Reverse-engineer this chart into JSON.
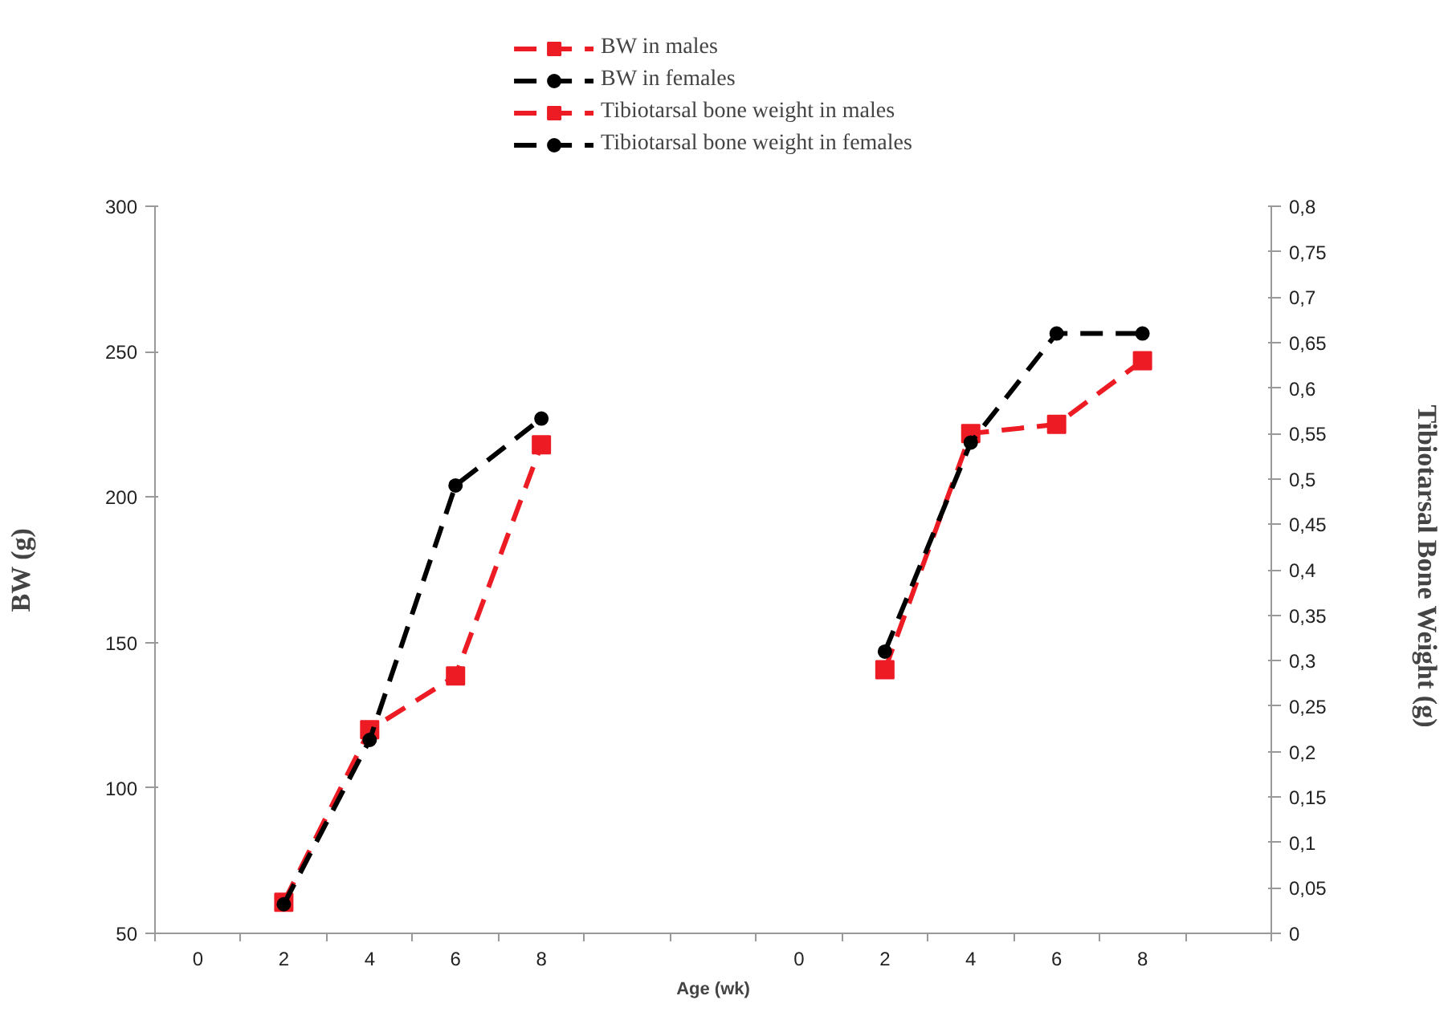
{
  "chart_data": {
    "type": "line",
    "xlabel": "Age (wk)",
    "ylabel": "BW (g)",
    "y2label": "Tibiotarsal Bone Weight  (g)",
    "categories": [
      "0",
      "2",
      "4",
      "6",
      "8",
      null,
      null,
      "0",
      "2",
      "4",
      "6",
      "8",
      null
    ],
    "series": [
      {
        "name": "BW in males",
        "color": "#ed1c24",
        "marker": "square",
        "values": [
          null,
          60.7,
          120,
          138.5,
          218,
          null,
          null,
          null,
          null,
          null,
          null,
          null,
          null
        ]
      },
      {
        "name": "BW in females",
        "color": "#000000",
        "marker": "circle",
        "values": [
          null,
          60,
          116.5,
          204,
          227,
          null,
          null,
          null,
          null,
          null,
          null,
          null,
          null
        ]
      },
      {
        "name": "Tibiotarsal bone weight in males",
        "color": "#ed1c24",
        "marker": "square",
        "axis": "y2",
        "values": [
          null,
          null,
          null,
          null,
          null,
          null,
          null,
          null,
          0.29,
          0.55,
          0.56,
          0.63,
          null
        ]
      },
      {
        "name": "Tibiotarsal bone weight in females",
        "color": "#000000",
        "marker": "circle",
        "axis": "y2",
        "values": [
          null,
          null,
          null,
          null,
          null,
          null,
          null,
          null,
          0.31,
          0.54,
          0.66,
          0.66,
          null
        ]
      }
    ],
    "ylim": [
      50,
      300
    ],
    "yticks": [
      50,
      100,
      150,
      200,
      250,
      300
    ],
    "y2lim": [
      0,
      0.8
    ],
    "y2ticks": [
      0,
      {
        "value": 0.05,
        "label": "0,05"
      },
      {
        "value": 0.1,
        "label": "0,1"
      },
      {
        "value": 0.15,
        "label": "0,15"
      },
      {
        "value": 0.2,
        "label": "0,2"
      },
      {
        "value": 0.25,
        "label": "0,25"
      },
      {
        "value": 0.3,
        "label": "0,3"
      },
      {
        "value": 0.35,
        "label": "0,35"
      },
      {
        "value": 0.4,
        "label": "0,4"
      },
      {
        "value": 0.45,
        "label": "0,45"
      },
      {
        "value": 0.5,
        "label": "0,5"
      },
      {
        "value": 0.55,
        "label": "0,55"
      },
      {
        "value": 0.6,
        "label": "0,6"
      },
      {
        "value": 0.65,
        "label": "0,65"
      },
      {
        "value": 0.7,
        "label": "0,7"
      },
      {
        "value": 0.75,
        "label": "0,75"
      },
      {
        "value": 0.8,
        "label": "0,8"
      }
    ],
    "line_style": "dashed",
    "grid": false,
    "legend": "top"
  }
}
